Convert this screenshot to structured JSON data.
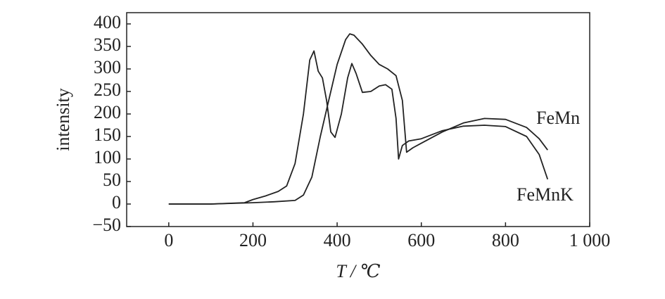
{
  "chart_data": {
    "type": "line",
    "x_label": "T / ℃",
    "y_label": "intensity",
    "xlim": [
      -100,
      1000
    ],
    "ylim": [
      -50,
      425
    ],
    "xticks": [
      0,
      200,
      400,
      600,
      800,
      {
        "value": 1000,
        "label": "1 000"
      }
    ],
    "yticks": [
      {
        "value": -50,
        "label": "−50"
      },
      0,
      50,
      100,
      150,
      200,
      250,
      300,
      350,
      400
    ],
    "series": [
      {
        "name": "FeMn",
        "color": "#222222",
        "x": [
          0,
          100,
          200,
          250,
          300,
          320,
          340,
          360,
          380,
          400,
          420,
          430,
          440,
          460,
          480,
          500,
          520,
          540,
          555,
          565,
          580,
          600,
          650,
          700,
          750,
          800,
          850,
          880,
          900
        ],
        "values": [
          0,
          0,
          3,
          5,
          8,
          20,
          60,
          150,
          230,
          310,
          365,
          378,
          375,
          355,
          330,
          310,
          300,
          285,
          230,
          115,
          125,
          135,
          160,
          180,
          190,
          188,
          170,
          145,
          120
        ]
      },
      {
        "name": "FeMnK",
        "color": "#222222",
        "x": [
          0,
          100,
          180,
          200,
          230,
          260,
          280,
          300,
          320,
          335,
          345,
          355,
          365,
          375,
          385,
          395,
          410,
          425,
          435,
          445,
          460,
          480,
          500,
          515,
          530,
          540,
          546,
          555,
          570,
          600,
          650,
          700,
          750,
          800,
          850,
          880,
          900
        ],
        "values": [
          0,
          0,
          3,
          10,
          18,
          28,
          40,
          90,
          200,
          320,
          340,
          295,
          280,
          230,
          160,
          148,
          200,
          280,
          312,
          290,
          248,
          250,
          262,
          265,
          255,
          190,
          100,
          130,
          140,
          145,
          163,
          173,
          175,
          172,
          150,
          110,
          55
        ]
      }
    ]
  }
}
